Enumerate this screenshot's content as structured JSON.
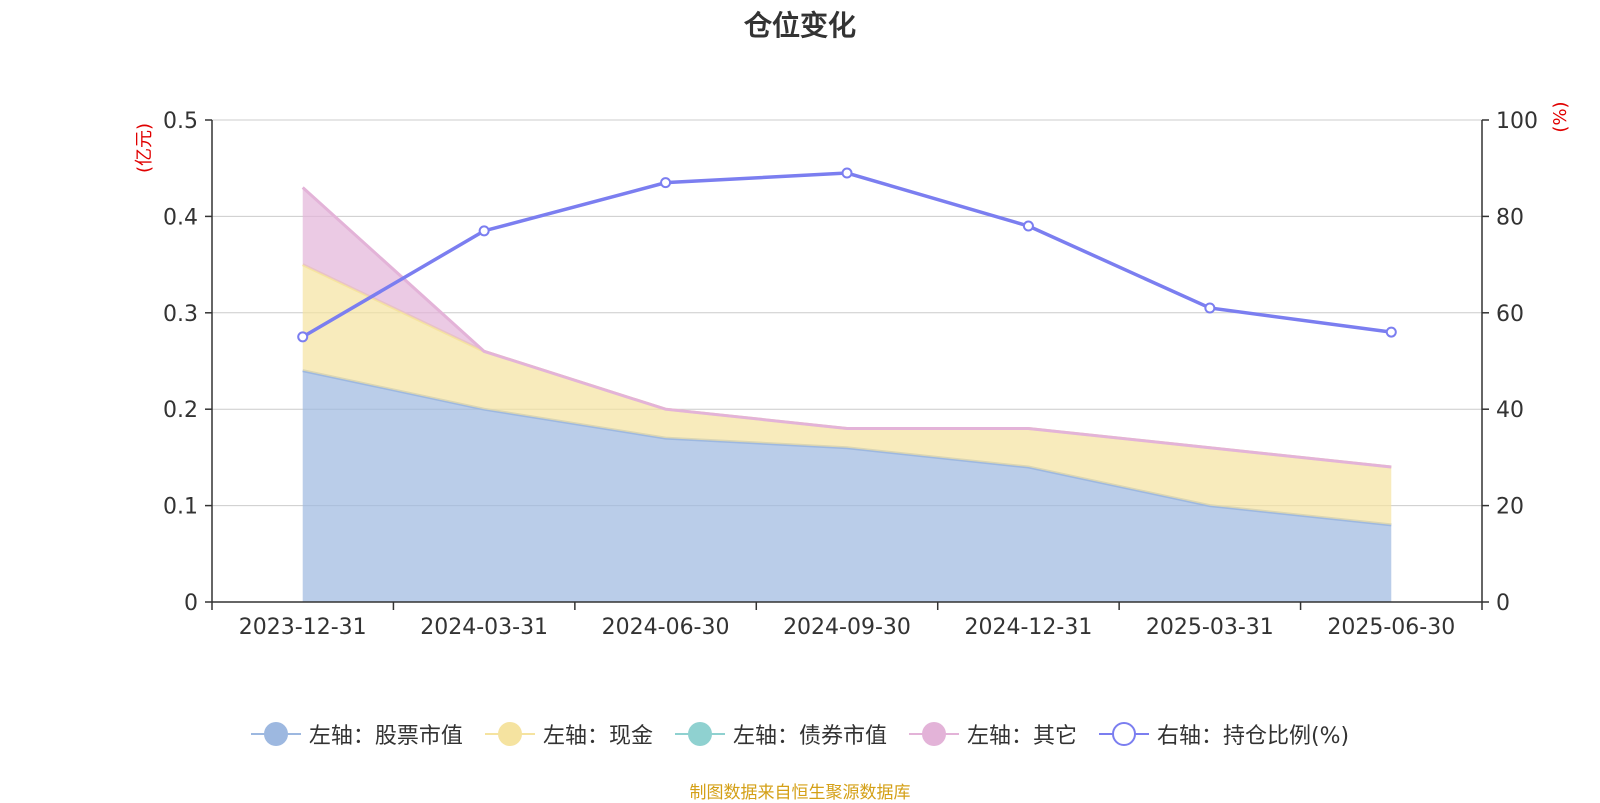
{
  "chart_data": {
    "type": "area",
    "title": "仓位变化",
    "categories": [
      "2023-12-31",
      "2024-03-31",
      "2024-06-30",
      "2024-09-30",
      "2024-12-31",
      "2025-03-31",
      "2025-06-30"
    ],
    "left_axis": {
      "unit": "(亿元)",
      "ylim": [
        0,
        0.5
      ],
      "ticks": [
        "0",
        "0.1",
        "0.2",
        "0.3",
        "0.4",
        "0.5"
      ]
    },
    "right_axis": {
      "unit": "(%)",
      "ylim": [
        0,
        100
      ],
      "ticks": [
        "0",
        "20",
        "40",
        "60",
        "80",
        "100"
      ]
    },
    "stacked": true,
    "series": [
      {
        "name": "左轴：股票市值",
        "axis": "left",
        "type": "area",
        "values": [
          0.24,
          0.2,
          0.17,
          0.16,
          0.14,
          0.1,
          0.08
        ],
        "color": "#9db8e0"
      },
      {
        "name": "左轴：现金",
        "axis": "left",
        "type": "area",
        "values": [
          0.11,
          0.06,
          0.03,
          0.02,
          0.04,
          0.06,
          0.06
        ],
        "color": "#f5e3a0"
      },
      {
        "name": "左轴：债券市值",
        "axis": "left",
        "type": "area",
        "values": [
          0,
          0,
          0,
          0,
          0,
          0,
          0
        ],
        "color": "#8fd1d0"
      },
      {
        "name": "左轴：其它",
        "axis": "left",
        "type": "area",
        "values": [
          0.08,
          0.0,
          0.0,
          0.0,
          0.0,
          0.0,
          0.0
        ],
        "color": "#e3b3d8"
      },
      {
        "name": "右轴：持仓比例(%)",
        "axis": "right",
        "type": "line",
        "values": [
          55,
          77,
          87,
          89,
          78,
          61,
          56
        ],
        "color": "#7b7ef0"
      }
    ],
    "grid": true,
    "legend_position": "bottom"
  },
  "source_note": "制图数据来自恒生聚源数据库"
}
